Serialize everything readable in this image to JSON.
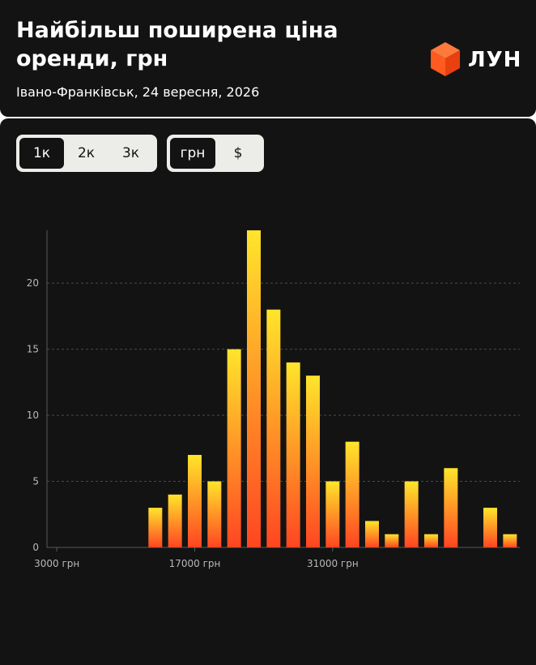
{
  "header": {
    "title": "Найбільш поширена ціна оренди, грн",
    "subtitle": "Івано-Франківськ, 24 вересня, 2026",
    "logo_text": "ЛУН"
  },
  "controls": {
    "scale_options": [
      "1к",
      "2к",
      "3к"
    ],
    "scale_selected": 0,
    "currency_options": [
      "грн",
      "$"
    ],
    "currency_selected": 0
  },
  "colors": {
    "background": "#141313",
    "bar_top": "#ffe52b",
    "bar_bottom": "#ff4522",
    "logo_orange": "#ff5a1f"
  },
  "chart_data": {
    "type": "bar",
    "x_start": 3000,
    "bin_width": 2000,
    "x_ticks": [
      3000,
      17000,
      31000
    ],
    "x_tick_labels": [
      "3000 грн",
      "17000 грн",
      "31000 грн"
    ],
    "values": [
      0,
      0,
      0,
      0,
      0,
      3,
      4,
      7,
      5,
      15,
      24,
      18,
      14,
      13,
      5,
      8,
      2,
      1,
      5,
      1,
      6,
      0,
      3,
      1
    ],
    "y_ticks": [
      0,
      5,
      10,
      15,
      20
    ],
    "ylim": [
      0,
      24
    ],
    "grid": true
  }
}
